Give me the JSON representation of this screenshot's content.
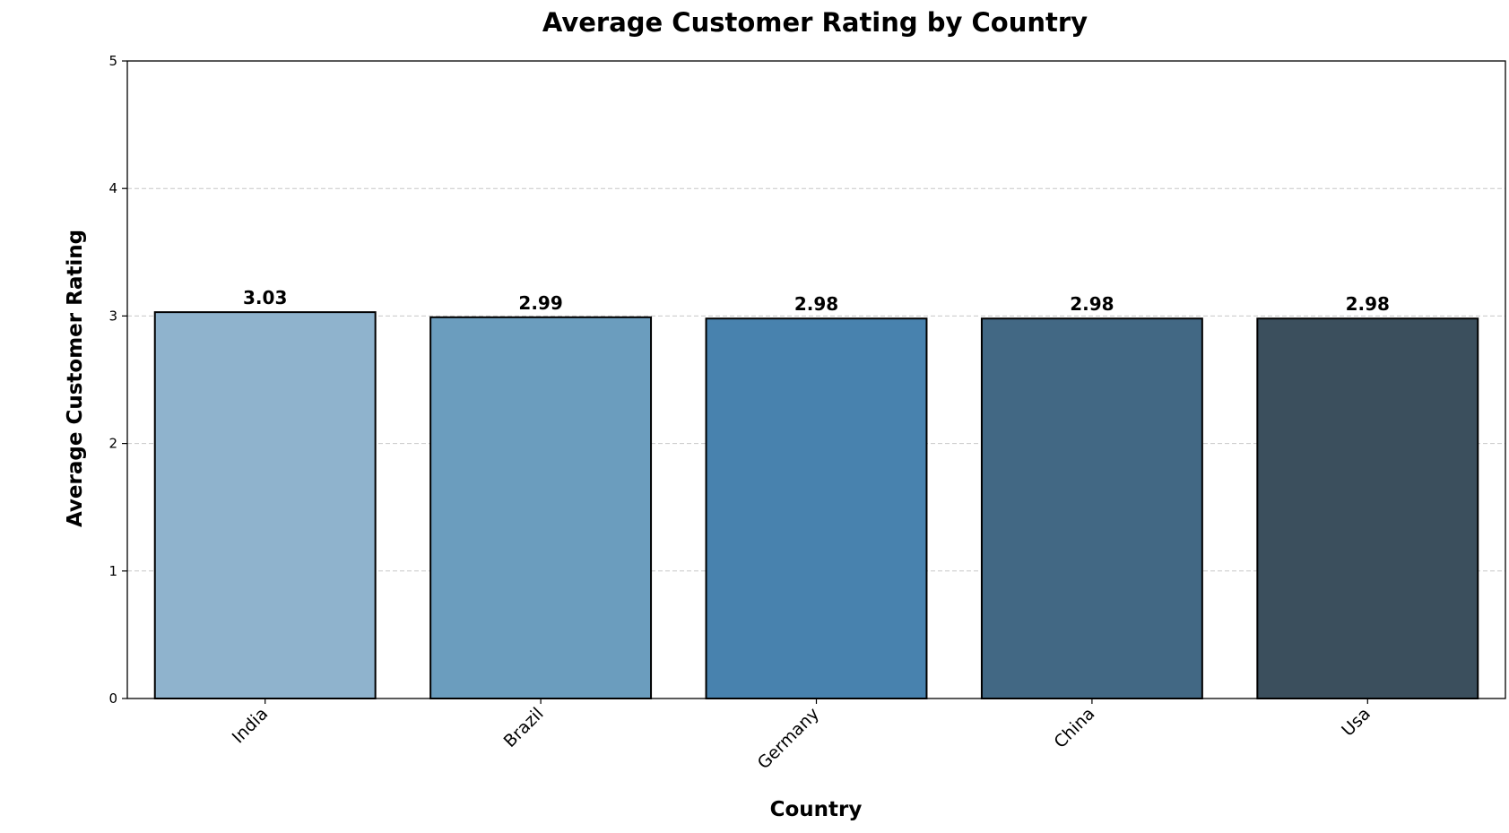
{
  "chart_data": {
    "type": "bar",
    "title": "Average Customer Rating by Country",
    "xlabel": "Country",
    "ylabel": "Average Customer Rating",
    "categories": [
      "India",
      "Brazil",
      "Germany",
      "China",
      "Usa"
    ],
    "values": [
      3.03,
      2.99,
      2.98,
      2.98,
      2.98
    ],
    "value_labels": [
      "3.03",
      "2.99",
      "2.98",
      "2.98",
      "2.98"
    ],
    "ylim": [
      0,
      5
    ],
    "yticks": [
      "0",
      "1",
      "2",
      "3",
      "4",
      "5"
    ],
    "grid": "y-dashed",
    "legend": "none",
    "colors": [
      "#8fb3cd",
      "#6b9dbe",
      "#4882ae",
      "#426884",
      "#3b4f5d"
    ],
    "edge_color": "#000000",
    "grid_color": "#c8c8c8"
  }
}
